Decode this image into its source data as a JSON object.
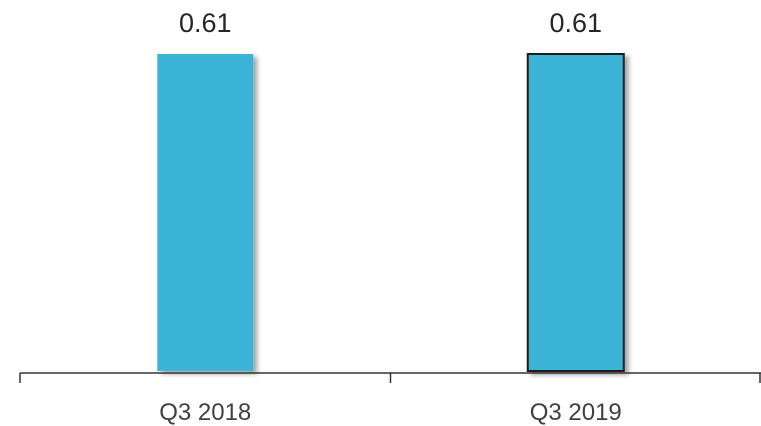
{
  "chart_data": {
    "type": "bar",
    "categories": [
      "Q3 2018",
      "Q3 2019"
    ],
    "values": [
      0.61,
      0.61
    ],
    "value_labels": [
      "0.61",
      "0.61"
    ],
    "title": "",
    "xlabel": "",
    "ylabel": "",
    "ylim": [
      0,
      0.61
    ],
    "grid": false,
    "legend": "none",
    "colors": {
      "bar_fill": "#3ab4d8",
      "bar_outline_second": "#1a1a1a",
      "axis": "#333333",
      "label_text": "#262626",
      "tick_text": "#404040"
    }
  }
}
